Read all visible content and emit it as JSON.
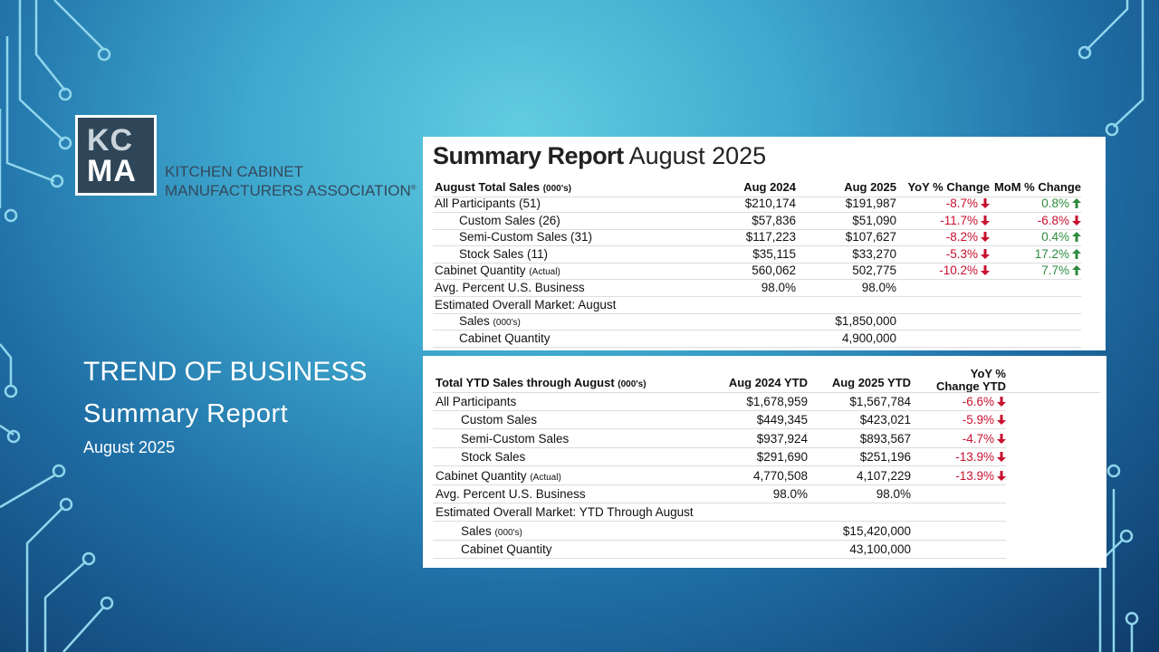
{
  "logo": {
    "line1": "KC",
    "line2": "MA",
    "name1": "KITCHEN CABINET",
    "name2": "MANUFACTURERS ASSOCIATION",
    "mark": "®"
  },
  "slide": {
    "title": "TREND OF BUSINESS",
    "subtitle": "Summary Report",
    "date": "August 2025"
  },
  "report": {
    "title_bold": "Summary Report",
    "title_rest": "August 2025"
  },
  "table1": {
    "header": [
      {
        "text": "August Total Sales",
        "note": "(000's)"
      },
      "Aug 2024",
      "Aug 2025",
      "YoY % Change",
      "MoM % Change"
    ],
    "rows": [
      {
        "indent": false,
        "cells": [
          "All Participants (51)",
          "$210,174",
          "$191,987",
          "-8.7%",
          "0.8%"
        ]
      },
      {
        "indent": true,
        "cells": [
          "Custom Sales (26)",
          "$57,836",
          "$51,090",
          "-11.7%",
          "-6.8%"
        ]
      },
      {
        "indent": true,
        "cells": [
          "Semi-Custom Sales (31)",
          "$117,223",
          "$107,627",
          "-8.2%",
          "0.4%"
        ]
      },
      {
        "indent": true,
        "cells": [
          "Stock Sales (11)",
          "$35,115",
          "$33,270",
          "-5.3%",
          "17.2%"
        ]
      },
      {
        "indent": false,
        "cells": [
          {
            "text": "Cabinet Quantity",
            "note": "(Actual)"
          },
          "560,062",
          "502,775",
          "-10.2%",
          "7.7%"
        ]
      },
      {
        "indent": false,
        "cells": [
          "Avg. Percent U.S. Business",
          "98.0%",
          "98.0%",
          null,
          null
        ]
      },
      {
        "indent": false,
        "cells": [
          "Estimated Overall Market: August",
          null,
          null,
          null,
          null
        ]
      },
      {
        "indent": true,
        "cells": [
          {
            "text": "Sales",
            "note": "(000's)"
          },
          null,
          "$1,850,000",
          null,
          null
        ]
      },
      {
        "indent": true,
        "cells": [
          "Cabinet Quantity",
          null,
          "4,900,000",
          null,
          null
        ]
      }
    ]
  },
  "table2": {
    "header": [
      {
        "text": "Total YTD Sales through August",
        "note": "(000's)"
      },
      "Aug 2024 YTD",
      "Aug 2025 YTD",
      "YoY % Change YTD"
    ],
    "rows": [
      {
        "indent": false,
        "cells": [
          "All Participants",
          "$1,678,959",
          "$1,567,784",
          "-6.6%"
        ]
      },
      {
        "indent": true,
        "cells": [
          "Custom Sales",
          "$449,345",
          "$423,021",
          "-5.9%"
        ]
      },
      {
        "indent": true,
        "cells": [
          "Semi-Custom Sales",
          "$937,924",
          "$893,567",
          "-4.7%"
        ]
      },
      {
        "indent": true,
        "cells": [
          "Stock Sales",
          "$291,690",
          "$251,196",
          "-13.9%"
        ]
      },
      {
        "indent": false,
        "cells": [
          {
            "text": "Cabinet Quantity",
            "note": "(Actual)"
          },
          "4,770,508",
          "4,107,229",
          "-13.9%"
        ]
      },
      {
        "indent": false,
        "cells": [
          "Avg. Percent U.S. Business",
          "98.0%",
          "98.0%",
          null
        ]
      },
      {
        "indent": false,
        "cells": [
          "Estimated Overall Market: YTD Through August",
          null,
          null,
          null
        ]
      },
      {
        "indent": true,
        "cells": [
          {
            "text": "Sales",
            "note": "(000's)"
          },
          null,
          "$15,420,000",
          null
        ]
      },
      {
        "indent": true,
        "cells": [
          "Cabinet Quantity",
          null,
          "43,100,000",
          null
        ]
      }
    ]
  }
}
